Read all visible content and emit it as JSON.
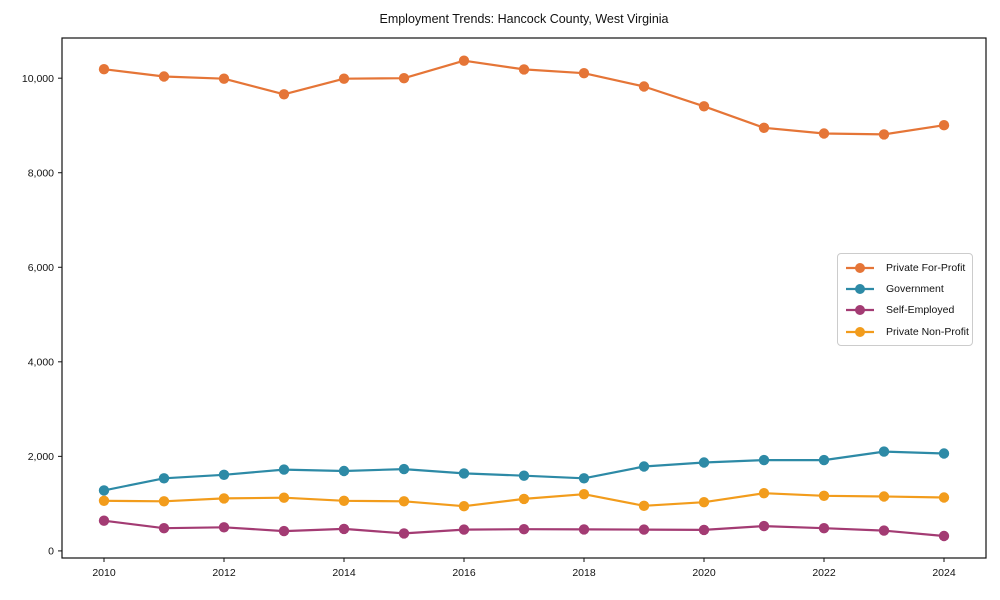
{
  "title": "Employment Trends: Hancock County, West Virginia",
  "chart_data": {
    "type": "line",
    "title": "Employment Trends: Hancock County, West Virginia",
    "xlabel": "",
    "ylabel": "",
    "grid": false,
    "x": [
      2010,
      2011,
      2012,
      2013,
      2014,
      2015,
      2016,
      2017,
      2018,
      2019,
      2020,
      2021,
      2022,
      2023,
      2024
    ],
    "series": [
      {
        "name": "Private For-Profit",
        "color": "#E57537",
        "values": [
          10190,
          10035,
          9990,
          9660,
          9990,
          10000,
          10370,
          10185,
          10105,
          9825,
          9405,
          8950,
          8830,
          8810,
          9005
        ]
      },
      {
        "name": "Government",
        "color": "#2D8AA6",
        "values": [
          1280,
          1535,
          1610,
          1720,
          1690,
          1730,
          1640,
          1590,
          1535,
          1785,
          1870,
          1920,
          1920,
          2100,
          2060
        ]
      },
      {
        "name": "Self-Employed",
        "color": "#A33B73",
        "values": [
          640,
          480,
          500,
          420,
          465,
          370,
          450,
          460,
          455,
          450,
          445,
          525,
          480,
          430,
          315
        ]
      },
      {
        "name": "Private Non-Profit",
        "color": "#F29C1C",
        "values": [
          1060,
          1050,
          1110,
          1125,
          1060,
          1050,
          945,
          1100,
          1200,
          955,
          1030,
          1220,
          1165,
          1150,
          1130
        ]
      }
    ],
    "xlim": [
      2009.3,
      2024.7
    ],
    "ylim": [
      -150,
      10850
    ],
    "xticks": [
      2010,
      2012,
      2014,
      2016,
      2018,
      2020,
      2022,
      2024
    ],
    "yticks": [
      0,
      2000,
      4000,
      6000,
      8000,
      10000
    ],
    "ytick_labels": [
      "0",
      "2,000",
      "4,000",
      "6,000",
      "8,000",
      "10,000"
    ],
    "legend_position": "center right"
  }
}
